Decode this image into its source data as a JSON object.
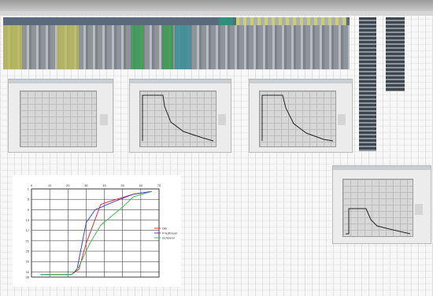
{
  "chart_data": {
    "type": "line",
    "x_ticks": [
      "0",
      "10",
      "20",
      "30",
      "40",
      "50",
      "60",
      "70"
    ],
    "y_ticks": [
      "1",
      "5",
      "9",
      "13",
      "17",
      "21",
      "25",
      "29",
      "33",
      "35"
    ],
    "xlim": [
      0,
      70
    ],
    "ylim": [
      1,
      35
    ],
    "y_reversed": true,
    "x_axis_position": "top",
    "grid": true,
    "legend_position": "right",
    "series": [
      {
        "name": "OB",
        "color": "#e0303a",
        "x": [
          5,
          22,
          26,
          30,
          38,
          42,
          56,
          66
        ],
        "y": [
          34,
          34,
          32,
          22,
          7,
          6,
          3,
          2
        ]
      },
      {
        "name": "Friedbauer",
        "color": "#4a3fcf",
        "x": [
          5,
          22,
          25,
          30,
          35,
          45,
          56,
          66
        ],
        "y": [
          34,
          34,
          32,
          14,
          9,
          6,
          3,
          2
        ]
      },
      {
        "name": "Scheerer",
        "color": "#3fbf4f",
        "x": [
          5,
          22,
          26,
          32,
          38,
          50,
          56,
          66
        ],
        "y": [
          34,
          34,
          31,
          22,
          15,
          8,
          4,
          2
        ]
      }
    ]
  }
}
